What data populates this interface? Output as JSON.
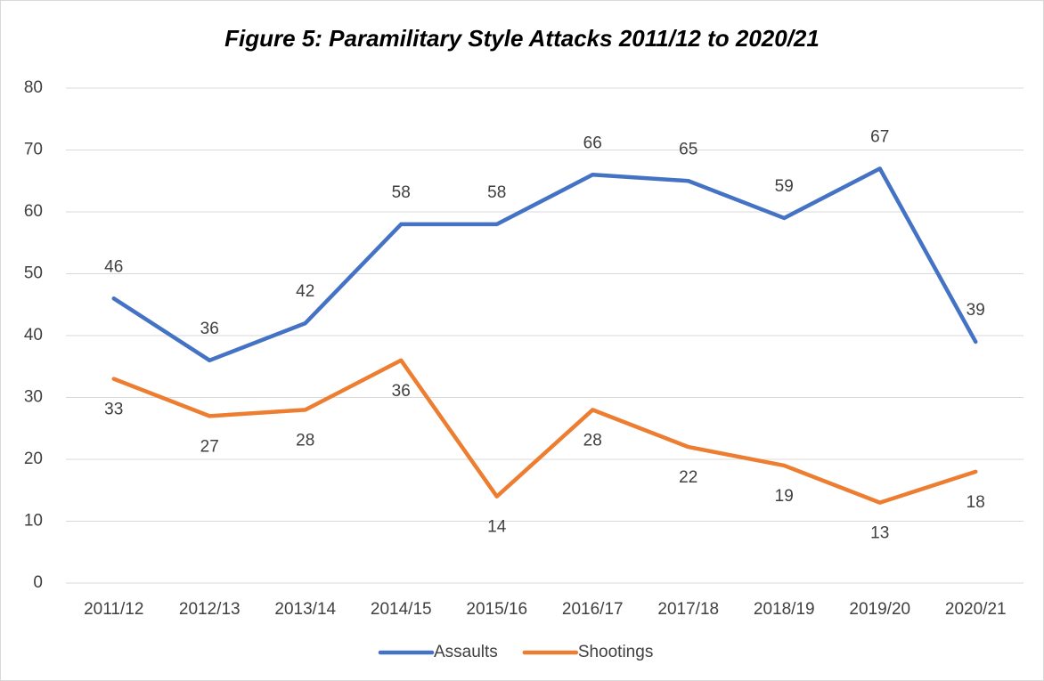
{
  "chart_data": {
    "type": "line",
    "title": "Figure 5: Paramilitary Style Attacks 2011/12 to 2020/21",
    "categories": [
      "2011/12",
      "2012/13",
      "2013/14",
      "2014/15",
      "2015/16",
      "2016/17",
      "2017/18",
      "2018/19",
      "2019/20",
      "2020/21"
    ],
    "series": [
      {
        "name": "Assaults",
        "color": "#4472c4",
        "values": [
          46,
          36,
          42,
          58,
          58,
          66,
          65,
          59,
          67,
          39
        ]
      },
      {
        "name": "Shootings",
        "color": "#ed7d31",
        "values": [
          33,
          27,
          28,
          36,
          14,
          28,
          22,
          19,
          13,
          18
        ]
      }
    ],
    "ylim": [
      0,
      80
    ],
    "yticks": [
      0,
      10,
      20,
      30,
      40,
      50,
      60,
      70,
      80
    ],
    "grid": true,
    "legend": "bottom",
    "data_labels": true
  }
}
